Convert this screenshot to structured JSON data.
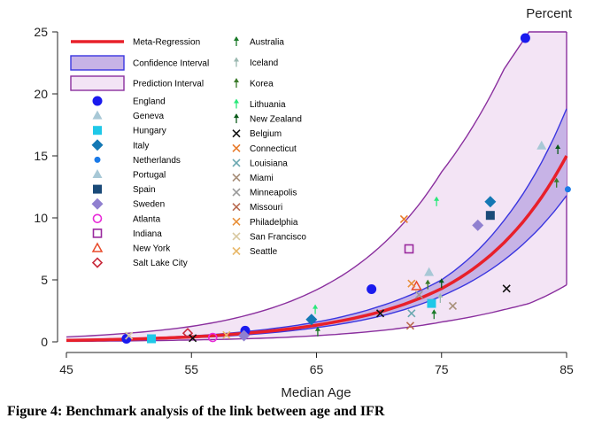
{
  "chart_data": {
    "type": "scatter",
    "title": "",
    "xlabel": "Median Age",
    "ylabel": "Percent",
    "xlim": [
      45,
      85
    ],
    "ylim": [
      0,
      25
    ],
    "xticks": [
      45,
      55,
      65,
      75,
      85
    ],
    "yticks": [
      0,
      5,
      10,
      15,
      20,
      25
    ],
    "grid": false,
    "legend_position": "top-left",
    "fits": [
      {
        "name": "Meta-Regression",
        "color": "#e8202a",
        "x": [
          45,
          50,
          55,
          60,
          65,
          70,
          75,
          80,
          85
        ],
        "y": [
          0.12,
          0.22,
          0.4,
          0.75,
          1.35,
          2.4,
          4.3,
          8.0,
          15.0
        ]
      },
      {
        "name": "Confidence Interval",
        "color": "#3a36e0",
        "fill": "#c7b3e6",
        "x": [
          45,
          50,
          55,
          60,
          65,
          70,
          75,
          80,
          85
        ],
        "lower": [
          0.1,
          0.18,
          0.33,
          0.62,
          1.15,
          2.05,
          3.7,
          6.6,
          11.8
        ],
        "upper": [
          0.15,
          0.27,
          0.48,
          0.9,
          1.6,
          2.85,
          5.0,
          9.8,
          18.8
        ]
      },
      {
        "name": "Prediction Interval",
        "color": "#8a2f9e",
        "fill": "#f3e4f5",
        "x": [
          45,
          50,
          55,
          60,
          65,
          70,
          75,
          80,
          82,
          85
        ],
        "lower": [
          0.04,
          0.08,
          0.15,
          0.27,
          0.5,
          0.9,
          1.6,
          2.6,
          3.1,
          4.6
        ],
        "upper": [
          0.4,
          0.7,
          1.25,
          2.3,
          4.2,
          7.6,
          13.7,
          22.0,
          25,
          25
        ]
      }
    ],
    "series": [
      {
        "name": "England",
        "marker": "circle",
        "color": "#1a1aee",
        "points": [
          [
            49.8,
            0.25
          ],
          [
            59.3,
            0.9
          ],
          [
            69.4,
            4.25
          ],
          [
            81.7,
            24.5
          ]
        ]
      },
      {
        "name": "Geneva",
        "marker": "triangle",
        "color": "#a8c8d6",
        "points": [
          [
            74.0,
            5.6
          ]
        ]
      },
      {
        "name": "Hungary",
        "marker": "square",
        "color": "#1fc8e8",
        "points": [
          [
            51.8,
            0.25
          ],
          [
            74.2,
            3.1
          ]
        ]
      },
      {
        "name": "Italy",
        "marker": "diamond",
        "color": "#1478b4",
        "points": [
          [
            64.6,
            1.8
          ],
          [
            78.9,
            11.3
          ]
        ]
      },
      {
        "name": "Netherlands",
        "marker": "small-circle",
        "color": "#1a7ae8",
        "points": [
          [
            85.1,
            12.3
          ]
        ]
      },
      {
        "name": "Portugal",
        "marker": "triangle",
        "color": "#a8c8d6",
        "points": [
          [
            83.0,
            15.8
          ]
        ]
      },
      {
        "name": "Spain",
        "marker": "square",
        "color": "#1a4a78",
        "points": [
          [
            78.9,
            10.2
          ]
        ]
      },
      {
        "name": "Sweden",
        "marker": "diamond",
        "color": "#9080d0",
        "points": [
          [
            77.9,
            9.4
          ],
          [
            59.2,
            0.5
          ]
        ]
      },
      {
        "name": "Atlanta",
        "marker": "hollow-circle",
        "color": "#e82ad8",
        "points": [
          [
            56.7,
            0.35
          ]
        ]
      },
      {
        "name": "Indiana",
        "marker": "hollow-square",
        "color": "#9a2a9e",
        "points": [
          [
            72.4,
            7.5
          ]
        ]
      },
      {
        "name": "New York",
        "marker": "hollow-triangle",
        "color": "#e84a2a",
        "points": [
          [
            73.0,
            4.5
          ]
        ]
      },
      {
        "name": "Salt Lake City",
        "marker": "hollow-diamond",
        "color": "#c8283a",
        "points": [
          [
            54.7,
            0.7
          ]
        ]
      },
      {
        "name": "Australia",
        "marker": "spike",
        "color": "#1a7a28",
        "points": [
          [
            65.1,
            0.8
          ],
          [
            74.4,
            2.2
          ]
        ]
      },
      {
        "name": "Iceland",
        "marker": "spike",
        "color": "#9ab8b0",
        "points": [
          [
            74.9,
            3.5
          ]
        ]
      },
      {
        "name": "Korea",
        "marker": "spike",
        "color": "#3a7a2a",
        "points": [
          [
            84.2,
            12.8
          ],
          [
            73.9,
            4.6
          ]
        ]
      },
      {
        "name": "Lithuania",
        "marker": "spike",
        "color": "#2ae87a",
        "points": [
          [
            64.9,
            2.6
          ],
          [
            74.6,
            11.3
          ]
        ]
      },
      {
        "name": "New Zealand",
        "marker": "spike",
        "color": "#0a5a1a",
        "points": [
          [
            84.3,
            15.5
          ],
          [
            75.0,
            4.7
          ]
        ]
      },
      {
        "name": "Belgium",
        "marker": "x",
        "color": "#111111",
        "points": [
          [
            80.2,
            4.3
          ],
          [
            70.1,
            2.3
          ],
          [
            55.1,
            0.3
          ]
        ]
      },
      {
        "name": "Connecticut",
        "marker": "x",
        "color": "#e87a2a",
        "points": [
          [
            72.0,
            9.9
          ]
        ]
      },
      {
        "name": "Louisiana",
        "marker": "x",
        "color": "#6aa8b0",
        "points": [
          [
            72.6,
            2.3
          ]
        ]
      },
      {
        "name": "Miami",
        "marker": "x",
        "color": "#a8907a",
        "points": [
          [
            75.9,
            2.9
          ]
        ]
      },
      {
        "name": "Minneapolis",
        "marker": "x",
        "color": "#9a9a9a",
        "points": [
          [
            73.2,
            3.8
          ]
        ]
      },
      {
        "name": "Missouri",
        "marker": "x",
        "color": "#b86a50",
        "points": [
          [
            72.5,
            1.3
          ]
        ]
      },
      {
        "name": "Philadelphia",
        "marker": "x",
        "color": "#e8903a",
        "points": [
          [
            72.6,
            4.7
          ]
        ]
      },
      {
        "name": "San Francisco",
        "marker": "x",
        "color": "#d8c8a0",
        "points": [
          [
            50.0,
            0.5
          ]
        ]
      },
      {
        "name": "Seattle",
        "marker": "x",
        "color": "#e8b86a",
        "points": [
          [
            57.8,
            0.55
          ]
        ]
      }
    ]
  },
  "caption": "Figure 4: Benchmark analysis of the link between age and IFR"
}
